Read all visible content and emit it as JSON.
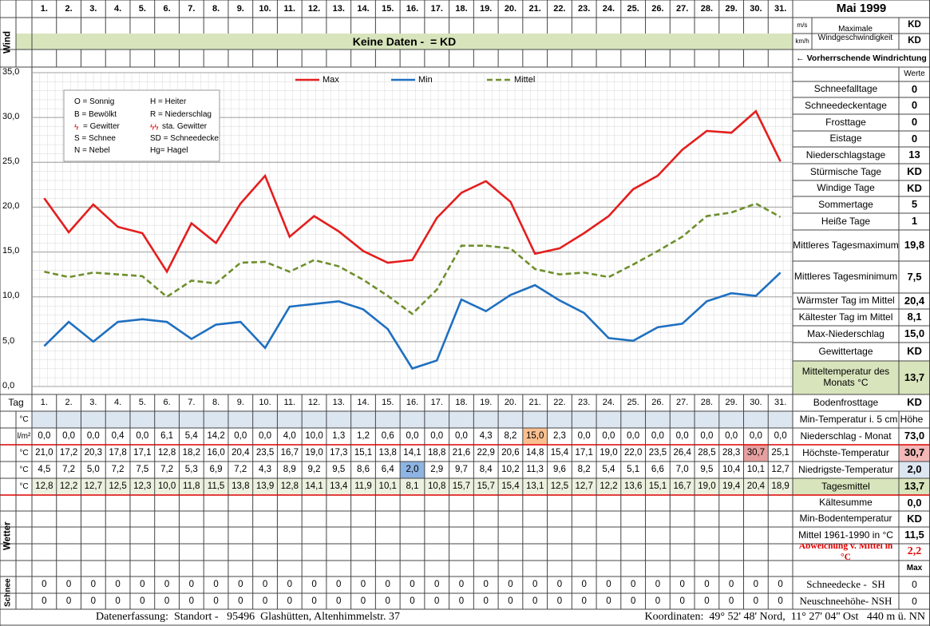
{
  "header": {
    "title": "Mai 1999",
    "wind_label": "Wind",
    "units": [
      "m/s",
      "km/h"
    ],
    "max_wind_label": "Maximale Windgeschwindigkeit",
    "max_wind_values": [
      "KD",
      "KD"
    ],
    "banner": "Keine Daten -  = KD",
    "wind_direction": "← Vorherrschende Windrichtung"
  },
  "chart_data": {
    "type": "line",
    "categories": [
      "1.",
      "2.",
      "3.",
      "4.",
      "5.",
      "6.",
      "7.",
      "8.",
      "9.",
      "10.",
      "11.",
      "12.",
      "13.",
      "14.",
      "15.",
      "16.",
      "17.",
      "18.",
      "19.",
      "20.",
      "21.",
      "22.",
      "23.",
      "24.",
      "25.",
      "26.",
      "27.",
      "28.",
      "29.",
      "30.",
      "31."
    ],
    "ylim": [
      0,
      35
    ],
    "yticks": [
      {
        "value": 0,
        "label": "0,0"
      },
      {
        "value": 5,
        "label": "5,0"
      },
      {
        "value": 10,
        "label": "10,0"
      },
      {
        "value": 15,
        "label": "15,0"
      },
      {
        "value": 20,
        "label": "20,0"
      },
      {
        "value": 25,
        "label": "25,0"
      },
      {
        "value": 30,
        "label": "30,0"
      },
      {
        "value": 35,
        "label": "35,0"
      }
    ],
    "grid": true,
    "series": [
      {
        "name": "Max",
        "color": "#e41e1e",
        "dashed": false,
        "values": [
          21.0,
          17.2,
          20.3,
          17.8,
          17.1,
          12.8,
          18.2,
          16.0,
          20.4,
          23.5,
          16.7,
          19.0,
          17.3,
          15.1,
          13.8,
          14.1,
          18.8,
          21.6,
          22.9,
          20.6,
          14.8,
          15.4,
          17.1,
          19.0,
          22.0,
          23.5,
          26.4,
          28.5,
          28.3,
          30.7,
          25.1
        ],
        "value_labels": [
          "21,0",
          "17,2",
          "20,3",
          "17,8",
          "17,1",
          "12,8",
          "18,2",
          "16,0",
          "20,4",
          "23,5",
          "16,7",
          "19,0",
          "17,3",
          "15,1",
          "13,8",
          "14,1",
          "18,8",
          "21,6",
          "22,9",
          "20,6",
          "14,8",
          "15,4",
          "17,1",
          "19,0",
          "22,0",
          "23,5",
          "26,4",
          "28,5",
          "28,3",
          "30,7",
          "25,1"
        ]
      },
      {
        "name": "Min",
        "color": "#1f70c1",
        "dashed": false,
        "values": [
          4.5,
          7.2,
          5.0,
          7.2,
          7.5,
          7.2,
          5.3,
          6.9,
          7.2,
          4.3,
          8.9,
          9.2,
          9.5,
          8.6,
          6.4,
          2.0,
          2.9,
          9.7,
          8.4,
          10.2,
          11.3,
          9.6,
          8.2,
          5.4,
          5.1,
          6.6,
          7.0,
          9.5,
          10.4,
          10.1,
          12.7
        ],
        "value_labels": [
          "4,5",
          "7,2",
          "5,0",
          "7,2",
          "7,5",
          "7,2",
          "5,3",
          "6,9",
          "7,2",
          "4,3",
          "8,9",
          "9,2",
          "9,5",
          "8,6",
          "6,4",
          "2,0",
          "2,9",
          "9,7",
          "8,4",
          "10,2",
          "11,3",
          "9,6",
          "8,2",
          "5,4",
          "5,1",
          "6,6",
          "7,0",
          "9,5",
          "10,4",
          "10,1",
          "12,7"
        ]
      },
      {
        "name": "Mittel",
        "color": "#6e8f2c",
        "dashed": true,
        "values": [
          12.8,
          12.2,
          12.7,
          12.5,
          12.3,
          10.0,
          11.8,
          11.5,
          13.8,
          13.9,
          12.8,
          14.1,
          13.4,
          11.9,
          10.1,
          8.1,
          10.8,
          15.7,
          15.7,
          15.4,
          13.1,
          12.5,
          12.7,
          12.2,
          13.6,
          15.1,
          16.7,
          19.0,
          19.4,
          20.4,
          18.9
        ],
        "value_labels": [
          "12,8",
          "12,2",
          "12,7",
          "12,5",
          "12,3",
          "10,0",
          "11,8",
          "11,5",
          "13,8",
          "13,9",
          "12,8",
          "14,1",
          "13,4",
          "11,9",
          "10,1",
          "8,1",
          "10,8",
          "15,7",
          "15,7",
          "15,4",
          "13,1",
          "12,5",
          "12,7",
          "12,2",
          "13,6",
          "15,1",
          "16,7",
          "19,0",
          "19,4",
          "20,4",
          "18,9"
        ]
      }
    ],
    "codes": [
      "O = Sonnig",
      "H = Heiter",
      "B = Bewölkt",
      "R = Niederschlag",
      "= Gewitter",
      "sta. Gewitter",
      "S = Schnee",
      "SD = Schneedecke",
      "N = Nebel",
      "Hg= Hagel"
    ]
  },
  "stats": {
    "header": "Werte",
    "rows": [
      {
        "label": "Schneefalltage",
        "value": "0"
      },
      {
        "label": "Schneedeckentage",
        "value": "0"
      },
      {
        "label": "Frosttage",
        "value": "0"
      },
      {
        "label": "Eistage",
        "value": "0"
      },
      {
        "label": "Niederschlagstage",
        "value": "13"
      },
      {
        "label": "Stürmische Tage",
        "value": "KD"
      },
      {
        "label": "Windige Tage",
        "value": "KD"
      },
      {
        "label": "Sommertage",
        "value": "5"
      },
      {
        "label": "Heiße Tage",
        "value": "1"
      },
      {
        "label": "Mittleres Tagesmaximum",
        "value": "19,8"
      },
      {
        "label": "Mittleres Tagesminimum",
        "value": "7,5"
      },
      {
        "label": "Wärmster Tag im Mittel",
        "value": "20,4"
      },
      {
        "label": "Kältester Tag im Mittel",
        "value": "8,1"
      },
      {
        "label": "Max-Niederschlag",
        "value": "15,0"
      },
      {
        "label": "Gewittertage",
        "value": "KD"
      },
      {
        "label": "Mitteltemperatur des Monats °C",
        "value": "13,7"
      },
      {
        "label": "Bodenfrosttage",
        "value": "KD"
      }
    ]
  },
  "table": {
    "row_label": "Tag",
    "rows": [
      {
        "unit": "°C",
        "label": "Min-Temperatur i. 5 cm Höhe"
      },
      {
        "unit": "l/m²",
        "label": "Niederschlag - Monat",
        "total": "73,0",
        "values": [
          0.0,
          0.0,
          0.0,
          0.4,
          0.0,
          6.1,
          5.4,
          14.2,
          0.0,
          0.0,
          4.0,
          10.0,
          1.3,
          1.2,
          0.6,
          0.0,
          0.0,
          0.0,
          4.3,
          8.2,
          15.0,
          2.3,
          0.0,
          0.0,
          0.0,
          0.0,
          0.0,
          0.0,
          0.0,
          0.0,
          0.0
        ],
        "value_labels": [
          "0,0",
          "0,0",
          "0,0",
          "0,4",
          "0,0",
          "6,1",
          "5,4",
          "14,2",
          "0,0",
          "0,0",
          "4,0",
          "10,0",
          "1,3",
          "1,2",
          "0,6",
          "0,0",
          "0,0",
          "0,0",
          "4,3",
          "8,2",
          "15,0",
          "2,3",
          "0,0",
          "0,0",
          "0,0",
          "0,0",
          "0,0",
          "0,0",
          "0,0",
          "0,0",
          "0,0"
        ]
      },
      {
        "unit": "°C",
        "label": "Höchste-Temperatur",
        "total": "30,7"
      },
      {
        "unit": "°C",
        "label": "Niedrigste-Temperatur",
        "total": "2,0"
      },
      {
        "unit": "°C",
        "label": "Tagesmittel",
        "total": "13,7"
      }
    ],
    "weather_label": "Wetter",
    "summary": [
      {
        "label": "Kältesumme",
        "value": "0,0"
      },
      {
        "label": "Min-Bodentemperatur",
        "value": "KD"
      },
      {
        "label": "Mittel 1961-1990 in °C",
        "value": "11,5"
      },
      {
        "label": "Abweichung v. Mittel in °C",
        "value": "2,2"
      }
    ],
    "snow_header": "Max",
    "snow_label": "Schnee",
    "snow": [
      {
        "label": "Schneedecke -  SH",
        "total": 0,
        "values": [
          0,
          0,
          0,
          0,
          0,
          0,
          0,
          0,
          0,
          0,
          0,
          0,
          0,
          0,
          0,
          0,
          0,
          0,
          0,
          0,
          0,
          0,
          0,
          0,
          0,
          0,
          0,
          0,
          0,
          0,
          0
        ]
      },
      {
        "label": "Neuschneehöhe- NSH",
        "total": 0,
        "values": [
          0,
          0,
          0,
          0,
          0,
          0,
          0,
          0,
          0,
          0,
          0,
          0,
          0,
          0,
          0,
          0,
          0,
          0,
          0,
          0,
          0,
          0,
          0,
          0,
          0,
          0,
          0,
          0,
          0,
          0,
          0
        ]
      }
    ]
  },
  "footer": {
    "left": "Datenerfassung:  Standort -   95496  Glashütten, Altenhimmelstr. 37",
    "right": "Koordinaten:  49° 52' 48' Nord,  11° 27' 04'' Ost   440 m ü. NN"
  }
}
